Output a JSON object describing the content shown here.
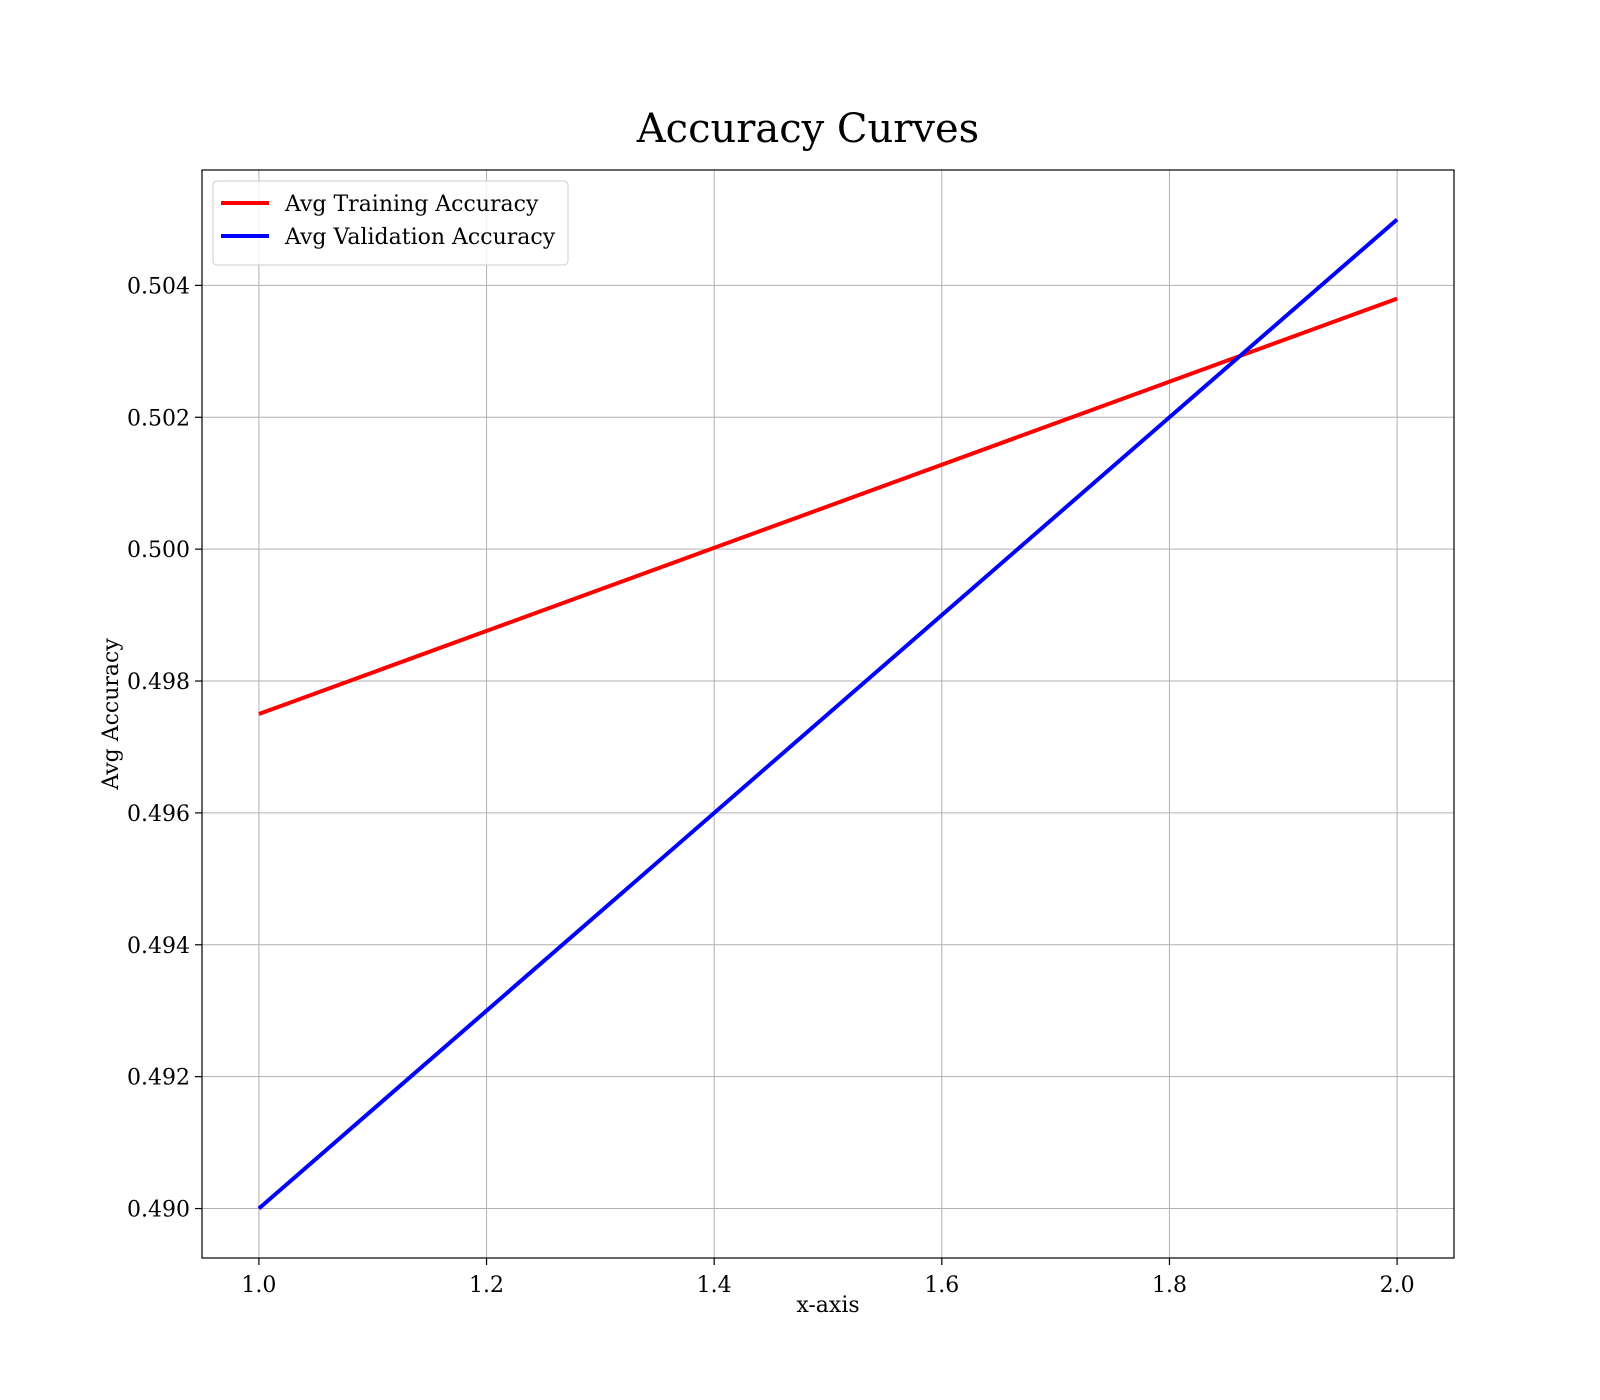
{
  "chart_data": {
    "type": "line",
    "title": "Accuracy Curves",
    "xlabel": "x-axis",
    "ylabel": "Avg Accuracy",
    "x": [
      1.0,
      2.0
    ],
    "series": [
      {
        "name": "Avg Training Accuracy",
        "color": "#ff0000",
        "values": [
          0.4975,
          0.5038
        ]
      },
      {
        "name": "Avg Validation Accuracy",
        "color": "#0000ff",
        "values": [
          0.49,
          0.505
        ]
      }
    ],
    "xlim": [
      0.95,
      2.05
    ],
    "ylim": [
      0.48925,
      0.50575
    ],
    "xticks": [
      1.0,
      1.2,
      1.4,
      1.6,
      1.8,
      2.0
    ],
    "xtick_labels": [
      "1.0",
      "1.2",
      "1.4",
      "1.6",
      "1.8",
      "2.0"
    ],
    "yticks": [
      0.49,
      0.492,
      0.494,
      0.496,
      0.498,
      0.5,
      0.502,
      0.504
    ],
    "ytick_labels": [
      "0.490",
      "0.492",
      "0.494",
      "0.496",
      "0.498",
      "0.500",
      "0.502",
      "0.504"
    ],
    "grid": true,
    "legend_position": "top-left"
  }
}
